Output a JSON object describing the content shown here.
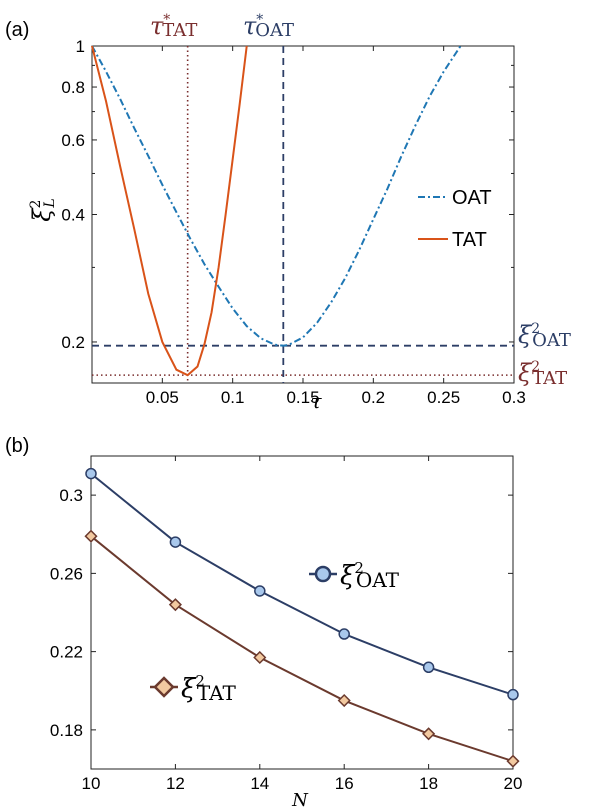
{
  "chart_data": [
    {
      "panel_label": "(a)",
      "type": "line",
      "xlabel": "τ",
      "ylabel": "ξ",
      "ylabel_sup": "2",
      "ylabel_sub": "L",
      "xlim": [
        0,
        0.3
      ],
      "ylim": [
        0.16,
        1.0
      ],
      "y_scale": "log",
      "x_ticks": [
        0.05,
        0.1,
        0.15,
        0.2,
        0.25,
        0.3
      ],
      "x_tick_labels": [
        "0.05",
        "0.1",
        "0.15",
        "0.2",
        "0.25",
        "0.3"
      ],
      "y_ticks": [
        0.2,
        0.4,
        0.6,
        0.8,
        1.0
      ],
      "y_tick_labels": [
        "0.2",
        "0.4",
        "0.6",
        "0.8",
        "1"
      ],
      "legend_position": "center-right",
      "series": [
        {
          "name": "OAT",
          "style": "dash-dot",
          "color": "#1f77b4",
          "x": [
            0,
            0.01,
            0.02,
            0.03,
            0.04,
            0.05,
            0.06,
            0.07,
            0.08,
            0.09,
            0.1,
            0.11,
            0.12,
            0.13,
            0.136,
            0.14,
            0.15,
            0.16,
            0.17,
            0.18,
            0.19,
            0.2,
            0.21,
            0.22,
            0.23,
            0.24,
            0.25,
            0.262
          ],
          "y": [
            1.0,
            0.87,
            0.75,
            0.64,
            0.55,
            0.47,
            0.405,
            0.35,
            0.305,
            0.27,
            0.24,
            0.218,
            0.204,
            0.197,
            0.196,
            0.197,
            0.205,
            0.222,
            0.248,
            0.283,
            0.33,
            0.39,
            0.46,
            0.55,
            0.65,
            0.76,
            0.87,
            1.0
          ]
        },
        {
          "name": "TAT",
          "style": "solid",
          "color": "#d95319",
          "x": [
            0,
            0.01,
            0.02,
            0.03,
            0.04,
            0.05,
            0.06,
            0.068,
            0.075,
            0.08,
            0.085,
            0.09,
            0.095,
            0.1,
            0.105,
            0.11
          ],
          "y": [
            1.0,
            0.74,
            0.52,
            0.37,
            0.26,
            0.2,
            0.172,
            0.167,
            0.175,
            0.198,
            0.235,
            0.3,
            0.4,
            0.54,
            0.73,
            1.0
          ]
        }
      ],
      "reference_lines": {
        "tau_tat": {
          "x": 0.068,
          "label_base": "τ",
          "label_sup": "*",
          "label_sub": "TAT",
          "color": "#7a2e2e"
        },
        "tau_oat": {
          "x": 0.136,
          "label_base": "τ",
          "label_sup": "*",
          "label_sub": "OAT",
          "color": "#2c3e66"
        },
        "xi_oat": {
          "y": 0.196,
          "label_base": "ξ",
          "label_sup": "2",
          "label_sub": "OAT",
          "color": "#2c3e66"
        },
        "xi_tat": {
          "y": 0.167,
          "label_base": "ξ",
          "label_sup": "2",
          "label_sub": "TAT",
          "color": "#7a2e2e"
        }
      }
    },
    {
      "panel_label": "(b)",
      "type": "line",
      "xlabel": "N",
      "xlim": [
        10,
        20
      ],
      "ylim": [
        0.16,
        0.32
      ],
      "x_ticks": [
        10,
        12,
        14,
        16,
        18,
        20
      ],
      "x_tick_labels": [
        "10",
        "12",
        "14",
        "16",
        "18",
        "20"
      ],
      "y_ticks": [
        0.18,
        0.22,
        0.26,
        0.3
      ],
      "y_tick_labels": [
        "0.18",
        "0.22",
        "0.26",
        "0.3"
      ],
      "series": [
        {
          "name_base": "ξ",
          "name_sup": "2",
          "name_sub": "OAT",
          "marker": "circle",
          "color": "#2c3e66",
          "marker_fill": "#a9c8ec",
          "x": [
            10,
            12,
            14,
            16,
            18,
            20
          ],
          "y": [
            0.311,
            0.276,
            0.251,
            0.229,
            0.212,
            0.198
          ]
        },
        {
          "name_base": "ξ",
          "name_sup": "2",
          "name_sub": "TAT",
          "marker": "diamond",
          "color": "#6b3a2e",
          "marker_fill": "#f2c9a0",
          "x": [
            10,
            12,
            14,
            16,
            18,
            20
          ],
          "y": [
            0.279,
            0.244,
            0.217,
            0.195,
            0.178,
            0.164
          ]
        }
      ]
    }
  ]
}
